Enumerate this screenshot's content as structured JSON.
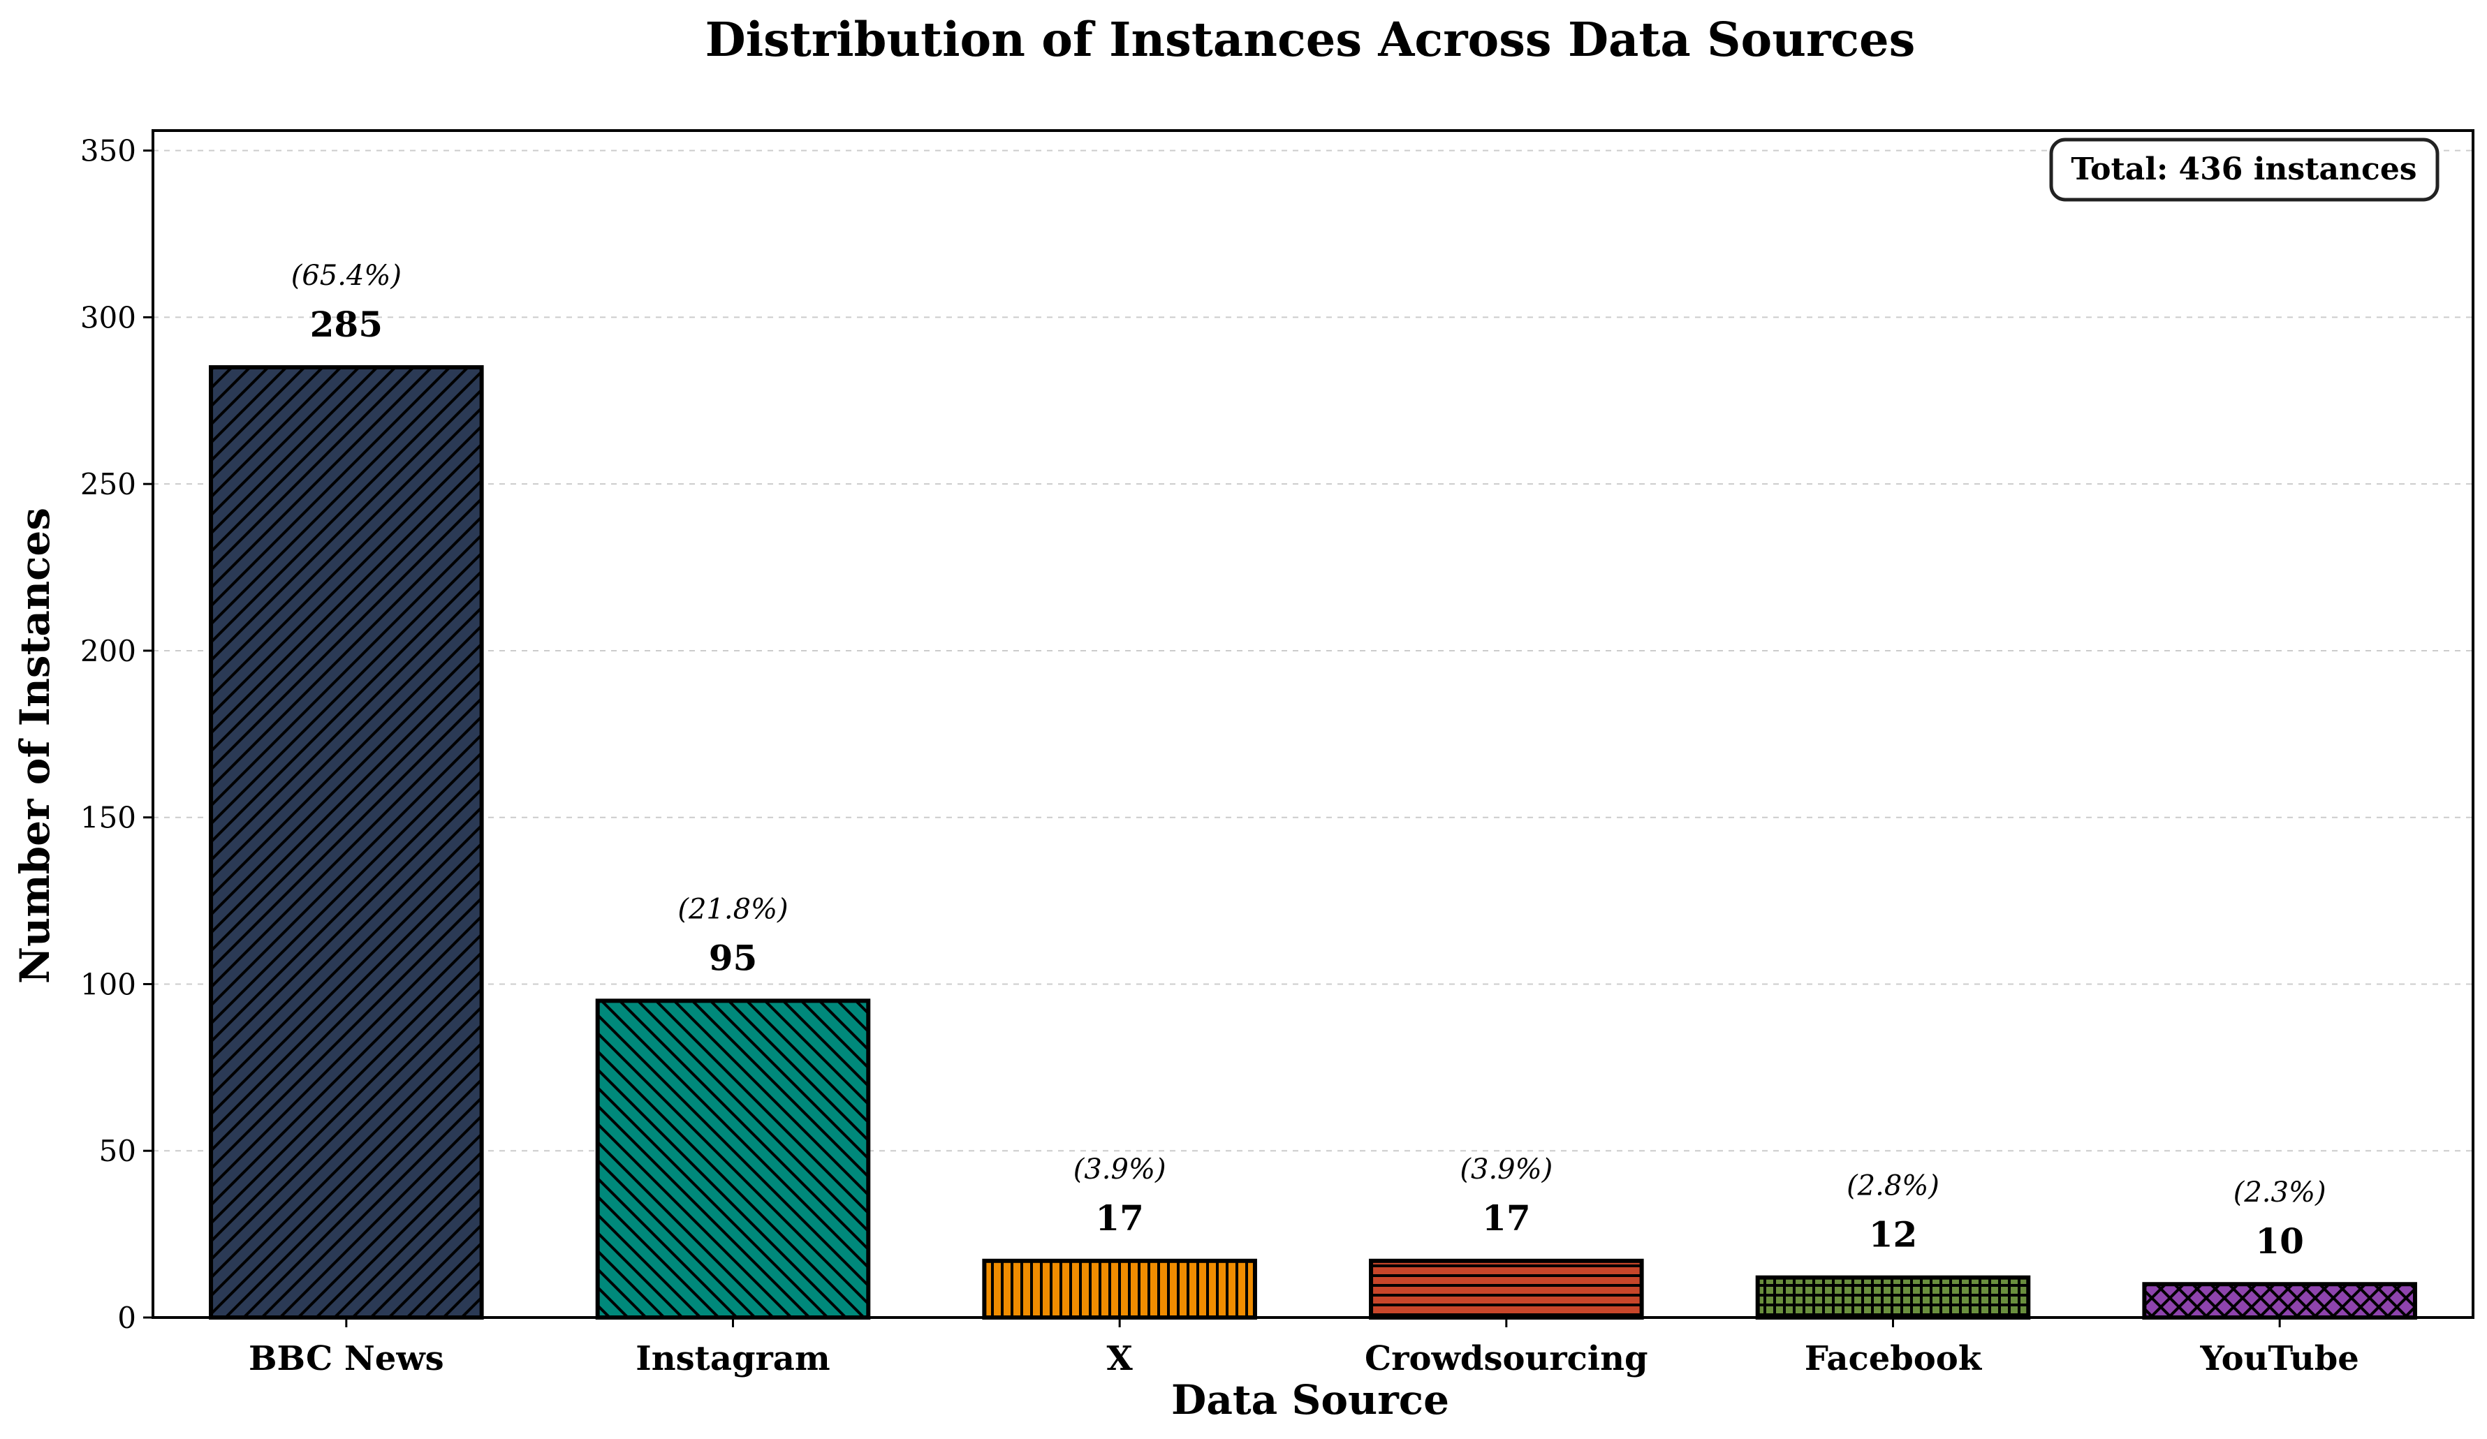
{
  "chart_data": {
    "type": "bar",
    "title": "Distribution of Instances Across Data Sources",
    "xlabel": "Data Source",
    "ylabel": "Number of Instances",
    "categories": [
      "BBC News",
      "Instagram",
      "X",
      "Crowdsourcing",
      "Facebook",
      "YouTube"
    ],
    "values": [
      285,
      95,
      17,
      17,
      12,
      10
    ],
    "value_labels": [
      "285",
      "95",
      "17",
      "17",
      "12",
      "10"
    ],
    "percent_labels": [
      "(65.4%)",
      "(21.8%)",
      "(3.9%)",
      "(3.9%)",
      "(2.8%)",
      "(2.3%)"
    ],
    "colors": [
      "#2b3a55",
      "#00897b",
      "#f08c00",
      "#c8462a",
      "#6a8f3e",
      "#8e44ad"
    ],
    "hatches": [
      "forward-diagonal",
      "back-diagonal",
      "vertical",
      "horizontal",
      "grid",
      "crosshatch"
    ],
    "ylim": [
      0,
      356
    ],
    "yticks": [
      0,
      50,
      100,
      150,
      200,
      250,
      300,
      350
    ],
    "grid": true,
    "annotation": "Total: 436 instances",
    "annotation_position": "top-right"
  }
}
